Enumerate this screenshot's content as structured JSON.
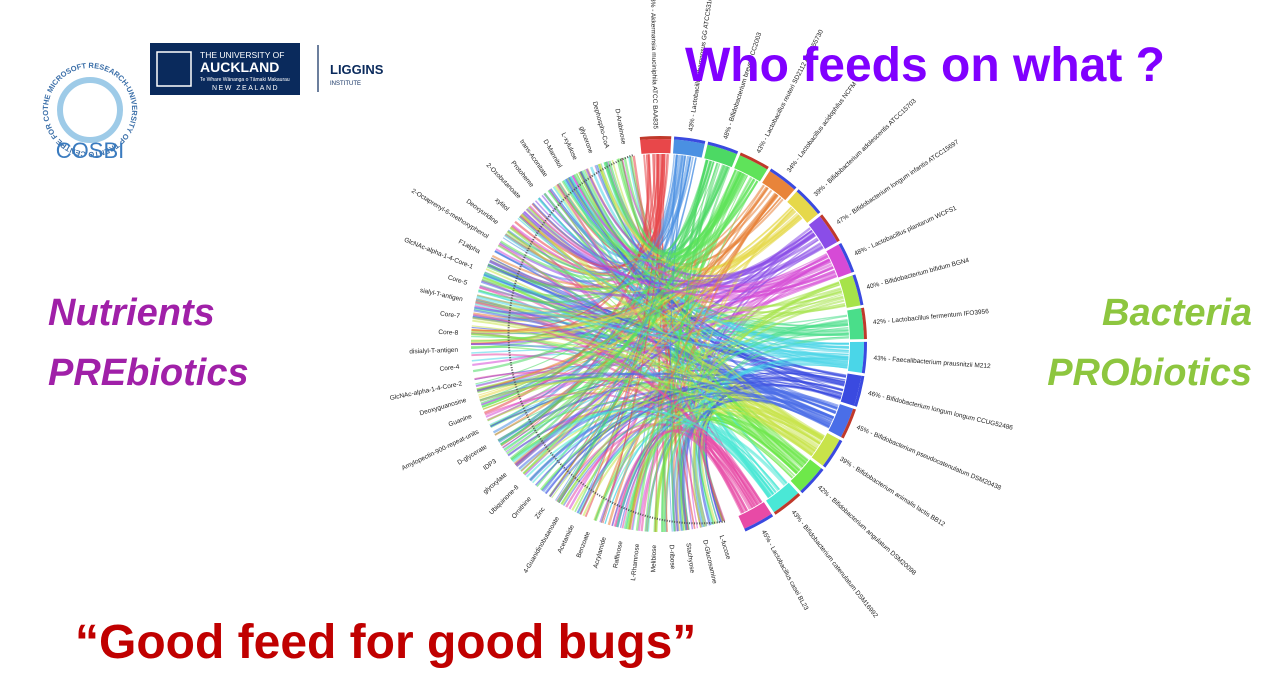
{
  "header": {
    "title": "Who feeds on what ?"
  },
  "left_labels": [
    "Nutrients",
    "PREbiotics"
  ],
  "right_labels": [
    "Bacteria",
    "PRObiotics"
  ],
  "footer_quote": "“Good feed for good bugs”",
  "logos": {
    "cosbi": {
      "ring_text": "THE MICROSOFT RESEARCH-UNIVERSITY OF TRENTO CENTRE FOR COMPUTATIONAL AND SYSTEMS BIOLOGY",
      "name": "COSBI"
    },
    "auckland": {
      "line1": "THE UNIVERSITY OF",
      "line2": "AUCKLAND",
      "line3": "Te Whare Wānanga o Tāmaki Makaurau",
      "line4": "NEW ZEALAND"
    },
    "liggins": {
      "line1": "LIGGINS",
      "line2": "INSTITUTE"
    }
  },
  "diagram": {
    "bacteria": [
      {
        "label": "33% - Akkermansia muciniphila ATCC BAA835",
        "color": "#e8474a"
      },
      {
        "label": "43% - Lactobacillus rhamnosus GG ATCC53103",
        "color": "#4a90e2"
      },
      {
        "label": "48% - Bifidobacterium breve UCC2003",
        "color": "#4cd964"
      },
      {
        "label": "43% - Lactobacillus reuteri SD2112 ATCC55730",
        "color": "#5fe35a"
      },
      {
        "label": "34% - Lactobacillus acidophilus NCFM",
        "color": "#e8843a"
      },
      {
        "label": "39% - Bifidobacterium adolescentis ATCC15703",
        "color": "#e6d84a"
      },
      {
        "label": "47% - Bifidobacterium longum infantis ATCC15697",
        "color": "#8a4de8"
      },
      {
        "label": "48% - Lactobacillus plantarum WCFS1",
        "color": "#d64ad6"
      },
      {
        "label": "40% - Bifidobacterium bifidum BGN4",
        "color": "#a6e34a"
      },
      {
        "label": "42% - Lactobacillus fermentum IFO3956",
        "color": "#4ade8a"
      },
      {
        "label": "43% - Faecalibacterium prausnitzii M212",
        "color": "#4ad6e8"
      },
      {
        "label": "46% - Bifidobacterium longum longum CCUG52486",
        "color": "#3a4ae0"
      },
      {
        "label": "45% - Bifidobacterium pseudocatenulatum DSM20438",
        "color": "#4a6ee8"
      },
      {
        "label": "39% - Bifidobacterium animalis lactis BB12",
        "color": "#c8e34a"
      },
      {
        "label": "42% - Bifidobacterium angulatum DSM20098",
        "color": "#6ee84a"
      },
      {
        "label": "43% - Bifidobacterium catenulatum DSM16992",
        "color": "#4ae8d6"
      },
      {
        "label": "45% - Lactobacillus casei BL23",
        "color": "#e84aa6"
      }
    ],
    "nutrients": [
      "L-fucose",
      "D-Glucosamine",
      "Stachyose",
      "D-ribose",
      "Melibiose",
      "L-Rhamnose",
      "Raffinose",
      "Acrylamide",
      "Benzoate",
      "Acetamide",
      "4-Guanidinobutanoate",
      "Zinc",
      "Ornithine",
      "Ubiquinone-8",
      "glyoxylate",
      "IDP3",
      "D-glycerate",
      "Amylopectin-900-repeat-units",
      "Guanine",
      "Deoxyguanosine",
      "GlcNAc-alpha-1-4-Core-2",
      "Core-4",
      "disialyl-T-antigen",
      "Core-8",
      "Core-7",
      "sialyl-T-antigen",
      "Core-5",
      "GlcNAc-alpha-1-4-Core-1",
      "F1alpha",
      "2-Octaprenyl-6-methoxyphenol",
      "Deoxyuridine",
      "xylitol",
      "2-Oxobutanoate",
      "Protoheme",
      "trans-Aconitate",
      "D-Mannitol",
      "L-xylulose",
      "glycerone",
      "Dephospho-CoA",
      "D-Arabinose"
    ]
  }
}
